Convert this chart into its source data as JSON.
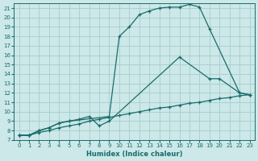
{
  "background_color": "#cce8e8",
  "grid_color": "#a8cccc",
  "line_color": "#1a6b6b",
  "xlabel": "Humidex (Indice chaleur)",
  "xlim": [
    -0.5,
    23.5
  ],
  "ylim": [
    7,
    21.5
  ],
  "yticks": [
    7,
    8,
    9,
    10,
    11,
    12,
    13,
    14,
    15,
    16,
    17,
    18,
    19,
    20,
    21
  ],
  "xticks": [
    0,
    1,
    2,
    3,
    4,
    5,
    6,
    7,
    8,
    9,
    10,
    11,
    12,
    13,
    14,
    15,
    16,
    17,
    18,
    19,
    20,
    21,
    22,
    23
  ],
  "curve1_x": [
    0,
    1,
    2,
    3,
    4,
    5,
    9,
    10,
    11,
    12,
    13,
    14,
    15,
    16,
    17,
    18,
    19,
    22,
    23
  ],
  "curve1_y": [
    7.5,
    7.5,
    8.0,
    8.3,
    8.8,
    9.0,
    9.5,
    18.0,
    19.0,
    20.3,
    20.7,
    21.0,
    21.1,
    21.1,
    21.4,
    21.1,
    18.8,
    12.0,
    11.8
  ],
  "curve2_x": [
    0,
    1,
    2,
    3,
    4,
    5,
    6,
    7,
    8,
    9,
    16,
    19,
    20,
    22,
    23
  ],
  "curve2_y": [
    7.5,
    7.5,
    8.0,
    8.3,
    8.8,
    9.0,
    9.2,
    9.5,
    8.5,
    9.0,
    15.8,
    13.5,
    13.5,
    12.0,
    11.8
  ],
  "curve3_x": [
    0,
    1,
    2,
    3,
    4,
    5,
    6,
    7,
    8,
    9,
    10,
    11,
    12,
    13,
    14,
    15,
    16,
    17,
    18,
    19,
    20,
    21,
    22,
    23
  ],
  "curve3_y": [
    7.5,
    7.5,
    7.8,
    8.0,
    8.3,
    8.5,
    8.7,
    9.0,
    9.2,
    9.4,
    9.6,
    9.8,
    10.0,
    10.2,
    10.4,
    10.5,
    10.7,
    10.9,
    11.0,
    11.2,
    11.4,
    11.5,
    11.7,
    11.8
  ]
}
